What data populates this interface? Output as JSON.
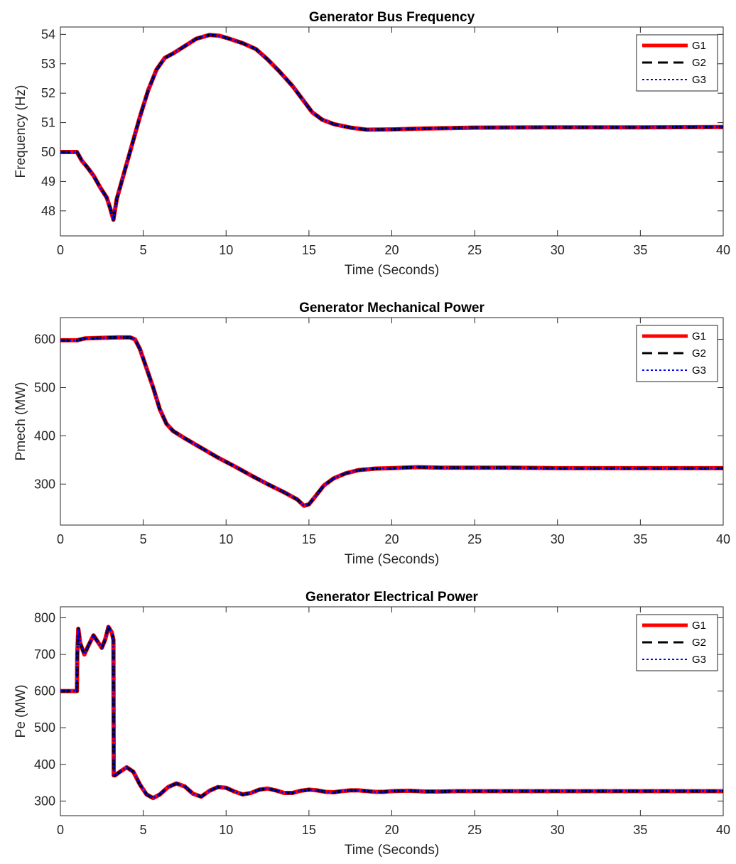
{
  "chart_data": [
    {
      "type": "line",
      "title": "Generator Bus Frequency",
      "xlabel": "Time (Seconds)",
      "ylabel": "Frequency (Hz)",
      "xlim": [
        0,
        40
      ],
      "ylim": [
        47.15,
        54.25
      ],
      "xticks": [
        0,
        5,
        10,
        15,
        20,
        25,
        30,
        35,
        40
      ],
      "yticks": [
        48,
        49,
        50,
        51,
        52,
        53,
        54
      ],
      "legend_position": "top-right",
      "grid": false,
      "series": [
        {
          "name": "G1",
          "color": "#ff0000",
          "style": "solid"
        },
        {
          "name": "G2",
          "color": "#000000",
          "style": "dashed"
        },
        {
          "name": "G3",
          "color": "#0000ff",
          "style": "dotted"
        }
      ],
      "x": [
        0,
        0.5,
        1.0,
        1.1,
        1.3,
        1.6,
        2.0,
        2.4,
        2.8,
        3.0,
        3.2,
        3.4,
        3.8,
        4.3,
        4.8,
        5.3,
        5.8,
        6.3,
        6.8,
        7.5,
        8.2,
        9.0,
        9.6,
        10.2,
        11.0,
        11.8,
        12.5,
        13.2,
        14.0,
        14.6,
        15.2,
        15.8,
        16.5,
        17.5,
        18.5,
        20,
        22,
        25,
        30,
        35,
        40
      ],
      "y": [
        50.0,
        50.0,
        50.0,
        49.9,
        49.7,
        49.5,
        49.2,
        48.8,
        48.45,
        48.1,
        47.7,
        48.4,
        49.2,
        50.2,
        51.2,
        52.1,
        52.8,
        53.2,
        53.35,
        53.6,
        53.85,
        53.98,
        53.95,
        53.85,
        53.7,
        53.5,
        53.15,
        52.75,
        52.25,
        51.8,
        51.35,
        51.1,
        50.95,
        50.83,
        50.76,
        50.77,
        50.8,
        50.83,
        50.84,
        50.84,
        50.85
      ]
    },
    {
      "type": "line",
      "title": "Generator Mechanical Power",
      "xlabel": "Time (Seconds)",
      "ylabel": "Pmech (MW)",
      "xlim": [
        0,
        40
      ],
      "ylim": [
        215,
        645
      ],
      "xticks": [
        0,
        5,
        10,
        15,
        20,
        25,
        30,
        35,
        40
      ],
      "yticks": [
        300,
        400,
        500,
        600
      ],
      "legend_position": "top-right",
      "grid": false,
      "series": [
        {
          "name": "G1",
          "color": "#ff0000",
          "style": "solid"
        },
        {
          "name": "G2",
          "color": "#000000",
          "style": "dashed"
        },
        {
          "name": "G3",
          "color": "#0000ff",
          "style": "dotted"
        }
      ],
      "x": [
        0,
        1.0,
        1.5,
        2.5,
        3.5,
        4.2,
        4.5,
        4.8,
        5.2,
        5.6,
        6.0,
        6.4,
        6.8,
        7.5,
        8.5,
        9.5,
        10.5,
        11.5,
        12.5,
        13.5,
        14.3,
        14.7,
        15.0,
        15.4,
        15.9,
        16.5,
        17.2,
        18.0,
        19.0,
        20.0,
        21.5,
        23,
        25,
        27,
        30,
        35,
        40
      ],
      "y": [
        598,
        598,
        602,
        603,
        604,
        604,
        600,
        580,
        540,
        500,
        455,
        425,
        410,
        395,
        375,
        355,
        337,
        318,
        300,
        283,
        268,
        255,
        258,
        275,
        297,
        312,
        322,
        329,
        332,
        333,
        335,
        334,
        334,
        334,
        333,
        333,
        333
      ]
    },
    {
      "type": "line",
      "title": "Generator Electrical Power",
      "xlabel": "Time (Seconds)",
      "ylabel": "Pe (MW)",
      "xlim": [
        0,
        40
      ],
      "ylim": [
        260,
        830
      ],
      "xticks": [
        0,
        5,
        10,
        15,
        20,
        25,
        30,
        35,
        40
      ],
      "yticks": [
        300,
        400,
        500,
        600,
        700,
        800
      ],
      "legend_position": "top-right",
      "grid": false,
      "series": [
        {
          "name": "G1",
          "color": "#ff0000",
          "style": "solid"
        },
        {
          "name": "G2",
          "color": "#000000",
          "style": "dashed"
        },
        {
          "name": "G3",
          "color": "#0000ff",
          "style": "dotted"
        }
      ],
      "x": [
        0,
        1.0,
        1.02,
        1.08,
        1.2,
        1.45,
        1.7,
        2.0,
        2.25,
        2.5,
        2.7,
        2.9,
        3.1,
        3.2,
        3.22,
        3.3,
        3.6,
        4.0,
        4.4,
        4.8,
        5.2,
        5.6,
        6.0,
        6.5,
        7.0,
        7.5,
        8.0,
        8.5,
        9.0,
        9.5,
        10.0,
        10.5,
        11.0,
        11.5,
        12.0,
        12.5,
        13.0,
        13.5,
        14.0,
        14.5,
        15.0,
        15.5,
        16.0,
        16.5,
        17.0,
        17.5,
        18.0,
        18.5,
        19.0,
        19.5,
        20.0,
        21.0,
        22.0,
        23.0,
        24.0,
        25,
        30,
        35,
        40
      ],
      "y": [
        600,
        600,
        700,
        770,
        730,
        700,
        725,
        752,
        735,
        718,
        740,
        775,
        760,
        740,
        370,
        370,
        380,
        392,
        380,
        345,
        318,
        308,
        318,
        338,
        348,
        340,
        320,
        312,
        328,
        338,
        336,
        326,
        318,
        322,
        331,
        334,
        329,
        322,
        322,
        328,
        331,
        329,
        325,
        324,
        327,
        329,
        329,
        327,
        325,
        325,
        327,
        328,
        326,
        326,
        327,
        327,
        327,
        327,
        327
      ]
    }
  ]
}
